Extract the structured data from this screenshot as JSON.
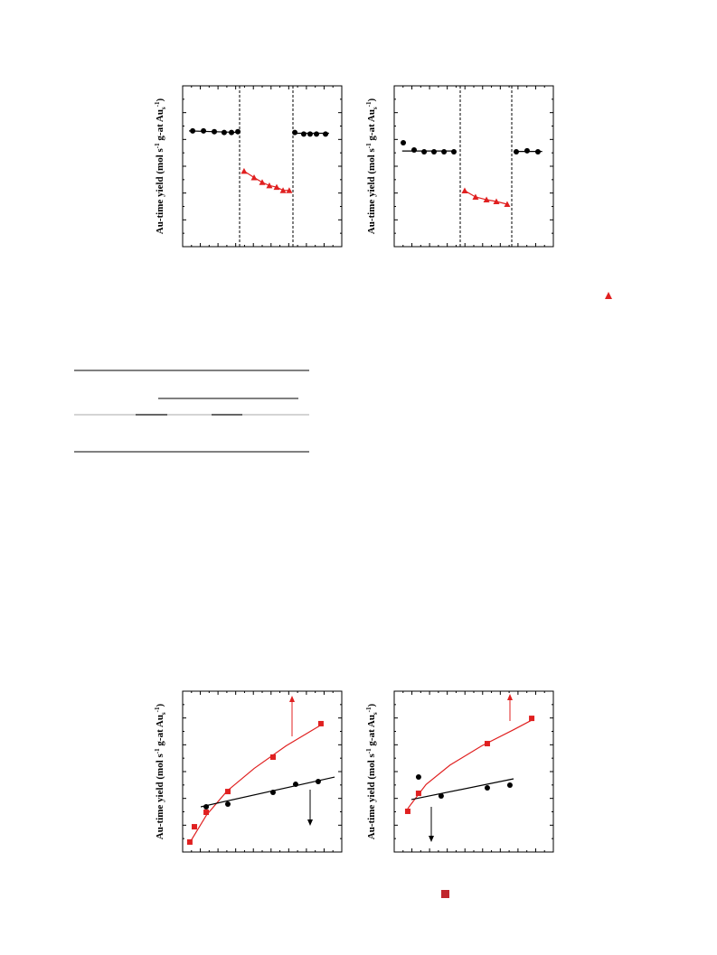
{
  "chart_data": [
    {
      "type": "scatter",
      "y_label_parts": [
        "Au-time yield (mol s",
        "-1",
        " g-at Au",
        "s",
        "-1",
        ")"
      ],
      "xlim": [
        0,
        100
      ],
      "ylim": [
        0,
        100
      ],
      "series": [
        {
          "color": "#000000",
          "marker": "circle",
          "x": [
            6.3,
            13.1,
            19.9,
            26.1,
            30.7,
            34.7
          ],
          "values": [
            72,
            72,
            71.5,
            71,
            71,
            71.5
          ]
        },
        {
          "color": "#000000",
          "marker": "none",
          "x": [
            4,
            36
          ],
          "values": [
            72,
            71
          ]
        },
        {
          "color": "#e02020",
          "marker": "triangle",
          "x": [
            38.6,
            44.9,
            50,
            54.5,
            59.1,
            63.1,
            67
          ],
          "values": [
            47,
            43,
            40,
            38,
            37,
            35,
            35
          ]
        },
        {
          "color": "#e02020",
          "marker": "none",
          "x": [
            38.6,
            44.9,
            50,
            54.5,
            59.1,
            63.1,
            67
          ],
          "values": [
            47,
            43,
            40,
            38,
            37,
            35,
            35
          ]
        },
        {
          "color": "#000000",
          "marker": "circle",
          "x": [
            70.5,
            76.1,
            80.1,
            84.1,
            89.8
          ],
          "values": [
            71,
            70,
            70,
            70,
            70
          ]
        },
        {
          "color": "#000000",
          "marker": "none",
          "x": [
            70,
            92
          ],
          "values": [
            70.5,
            70.5
          ]
        }
      ]
    },
    {
      "type": "scatter",
      "y_label_parts": [
        "Au-time yield (mol s",
        "-1",
        " g-at Au",
        "s",
        "-1",
        ")"
      ],
      "xlim": [
        0,
        100
      ],
      "ylim": [
        0,
        100
      ],
      "series": [
        {
          "color": "#000000",
          "marker": "circle",
          "x": [
            5.7,
            12.5,
            18.8,
            25,
            31.3,
            37.5
          ],
          "values": [
            64.6,
            60.1,
            59,
            59,
            59,
            59
          ]
        },
        {
          "color": "#000000",
          "marker": "none",
          "x": [
            5,
            38
          ],
          "values": [
            59.5,
            59.5
          ]
        },
        {
          "color": "#e02020",
          "marker": "triangle",
          "x": [
            44.3,
            51.1,
            58,
            64.2,
            71
          ],
          "values": [
            34.8,
            30.9,
            29.2,
            28.1,
            26.4
          ]
        },
        {
          "color": "#e02020",
          "marker": "none",
          "x": [
            44.3,
            51.1,
            58,
            64.2,
            71
          ],
          "values": [
            34.8,
            30.9,
            29.2,
            28.1,
            26.4
          ]
        },
        {
          "color": "#000000",
          "marker": "circle",
          "x": [
            76.7,
            83.5,
            90.3
          ],
          "values": [
            59,
            59.6,
            59
          ]
        },
        {
          "color": "#000000",
          "marker": "none",
          "x": [
            75,
            93
          ],
          "values": [
            59.2,
            59.2
          ]
        }
      ]
    },
    {
      "type": "scatter",
      "y_label_parts": [
        "Au-time yield (mol s",
        "-1",
        " g-at Au",
        "s",
        "-1",
        ")"
      ],
      "xlim": [
        0,
        100
      ],
      "ylim": [
        0,
        100
      ],
      "series": [
        {
          "color": "#e02020",
          "marker": "none",
          "x": [
            4,
            15,
            28,
            45,
            65,
            87
          ],
          "values": [
            5,
            23,
            38,
            52,
            66,
            79
          ]
        },
        {
          "color": "#e02020",
          "marker": "square",
          "x": [
            4.5,
            7.4,
            14.8,
            28.4,
            56.8,
            86.9
          ],
          "values": [
            6.2,
            15.7,
            24.7,
            37.6,
            59,
            79.8
          ]
        },
        {
          "color": "#000000",
          "marker": "none",
          "x": [
            11.4,
            95.5
          ],
          "values": [
            28.1,
            46.6
          ]
        },
        {
          "color": "#000000",
          "marker": "circle",
          "x": [
            14.8,
            28.4,
            56.8,
            71,
            85.2
          ],
          "values": [
            28.1,
            29.8,
            37.1,
            42.1,
            43.8
          ]
        }
      ]
    },
    {
      "type": "scatter",
      "y_label_parts": [
        "Au-time yield (mol s",
        "-1",
        " g-at Au",
        "s",
        "-1",
        ")"
      ],
      "xlim": [
        0,
        100
      ],
      "ylim": [
        0,
        100
      ],
      "series": [
        {
          "color": "#e02020",
          "marker": "none",
          "x": [
            8.5,
            20,
            35,
            55,
            75,
            86.4
          ],
          "values": [
            27,
            42,
            54,
            66,
            76,
            82
          ]
        },
        {
          "color": "#e02020",
          "marker": "square",
          "x": [
            8.5,
            15.3,
            58.5,
            86.4
          ],
          "values": [
            25.3,
            36.5,
            67.4,
            83.1
          ]
        },
        {
          "color": "#000000",
          "marker": "none",
          "x": [
            10.8,
            75
          ],
          "values": [
            32.6,
            45.5
          ]
        },
        {
          "color": "#000000",
          "marker": "circle",
          "x": [
            15.3,
            29.5,
            58.5,
            72.7
          ],
          "values": [
            46.6,
            34.8,
            39.9,
            41.6
          ]
        }
      ]
    }
  ]
}
